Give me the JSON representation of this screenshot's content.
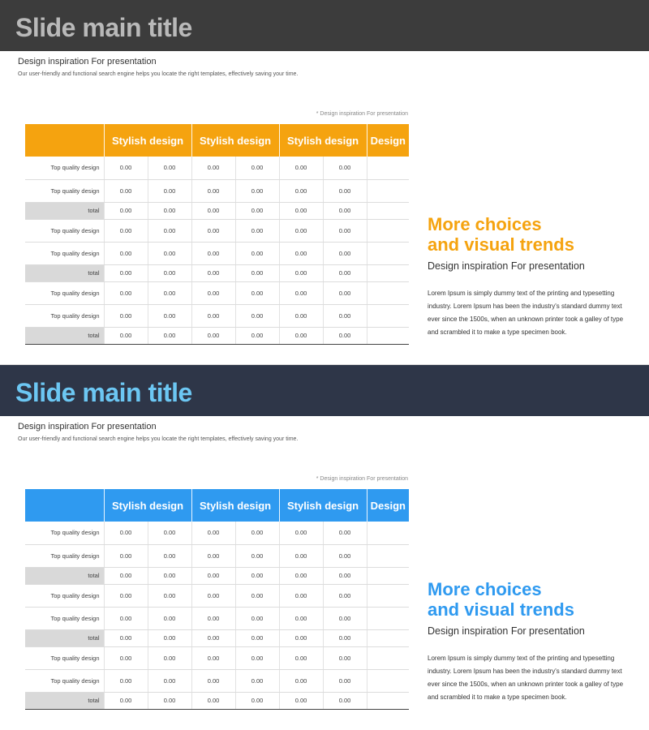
{
  "slides": [
    {
      "title": "Slide main title",
      "subheading": "Design inspiration For presentation",
      "description": "Our user-friendly and functional search engine helps you locate the right templates, effectively saving your time.",
      "note": "* Design inspiration For presentation",
      "table": {
        "headers": [
          "",
          "Stylish design",
          "Stylish design",
          "Stylish design",
          "Design"
        ],
        "rows": [
          {
            "label": "Top quality design",
            "type": "q",
            "values": [
              "0.00",
              "0.00",
              "0.00",
              "0.00",
              "0.00",
              "0.00"
            ]
          },
          {
            "label": "Top quality design",
            "type": "q",
            "values": [
              "0.00",
              "0.00",
              "0.00",
              "0.00",
              "0.00",
              "0.00"
            ]
          },
          {
            "label": "total",
            "type": "t",
            "values": [
              "0.00",
              "0.00",
              "0.00",
              "0.00",
              "0.00",
              "0.00"
            ]
          },
          {
            "label": "Top quality design",
            "type": "q",
            "values": [
              "0.00",
              "0.00",
              "0.00",
              "0.00",
              "0.00",
              "0.00"
            ]
          },
          {
            "label": "Top quality design",
            "type": "q",
            "values": [
              "0.00",
              "0.00",
              "0.00",
              "0.00",
              "0.00",
              "0.00"
            ]
          },
          {
            "label": "total",
            "type": "t",
            "values": [
              "0.00",
              "0.00",
              "0.00",
              "0.00",
              "0.00",
              "0.00"
            ]
          },
          {
            "label": "Top quality design",
            "type": "q",
            "values": [
              "0.00",
              "0.00",
              "0.00",
              "0.00",
              "0.00",
              "0.00"
            ]
          },
          {
            "label": "Top quality design",
            "type": "q",
            "values": [
              "0.00",
              "0.00",
              "0.00",
              "0.00",
              "0.00",
              "0.00"
            ]
          },
          {
            "label": "total",
            "type": "t",
            "values": [
              "0.00",
              "0.00",
              "0.00",
              "0.00",
              "0.00",
              "0.00"
            ]
          }
        ]
      },
      "side": {
        "heading_line1": "More choices",
        "heading_line2": "and visual trends",
        "subheading": "Design inspiration For presentation",
        "body": "Lorem Ipsum is simply dummy text of the printing and typesetting industry. Lorem Ipsum has been the industry's standard dummy text ever since the 1500s, when an unknown printer took a galley of type and scrambled it to make a type specimen book."
      },
      "accent_color": "#f5a30f",
      "title_bar_color": "#3c3c3c"
    },
    {
      "title": "Slide main title",
      "subheading": "Design inspiration For presentation",
      "description": "Our user-friendly and functional search engine helps you locate the right templates, effectively saving your time.",
      "note": "* Design inspiration For presentation",
      "table": {
        "headers": [
          "",
          "Stylish design",
          "Stylish design",
          "Stylish design",
          "Design"
        ],
        "rows": [
          {
            "label": "Top quality design",
            "type": "q",
            "values": [
              "0.00",
              "0.00",
              "0.00",
              "0.00",
              "0.00",
              "0.00"
            ]
          },
          {
            "label": "Top quality design",
            "type": "q",
            "values": [
              "0.00",
              "0.00",
              "0.00",
              "0.00",
              "0.00",
              "0.00"
            ]
          },
          {
            "label": "total",
            "type": "t",
            "values": [
              "0.00",
              "0.00",
              "0.00",
              "0.00",
              "0.00",
              "0.00"
            ]
          },
          {
            "label": "Top quality design",
            "type": "q",
            "values": [
              "0.00",
              "0.00",
              "0.00",
              "0.00",
              "0.00",
              "0.00"
            ]
          },
          {
            "label": "Top quality design",
            "type": "q",
            "values": [
              "0.00",
              "0.00",
              "0.00",
              "0.00",
              "0.00",
              "0.00"
            ]
          },
          {
            "label": "total",
            "type": "t",
            "values": [
              "0.00",
              "0.00",
              "0.00",
              "0.00",
              "0.00",
              "0.00"
            ]
          },
          {
            "label": "Top quality design",
            "type": "q",
            "values": [
              "0.00",
              "0.00",
              "0.00",
              "0.00",
              "0.00",
              "0.00"
            ]
          },
          {
            "label": "Top quality design",
            "type": "q",
            "values": [
              "0.00",
              "0.00",
              "0.00",
              "0.00",
              "0.00",
              "0.00"
            ]
          },
          {
            "label": "total",
            "type": "t",
            "values": [
              "0.00",
              "0.00",
              "0.00",
              "0.00",
              "0.00",
              "0.00"
            ]
          }
        ]
      },
      "side": {
        "heading_line1": "More choices",
        "heading_line2": "and visual trends",
        "subheading": "Design inspiration For presentation",
        "body": "Lorem Ipsum is simply dummy text of the printing and typesetting industry. Lorem Ipsum has been the industry's standard dummy text ever since the 1500s, when an unknown printer took a galley of type and scrambled it to make a type specimen book."
      },
      "accent_color": "#2f9af0",
      "title_bar_color": "#2e3648"
    }
  ]
}
